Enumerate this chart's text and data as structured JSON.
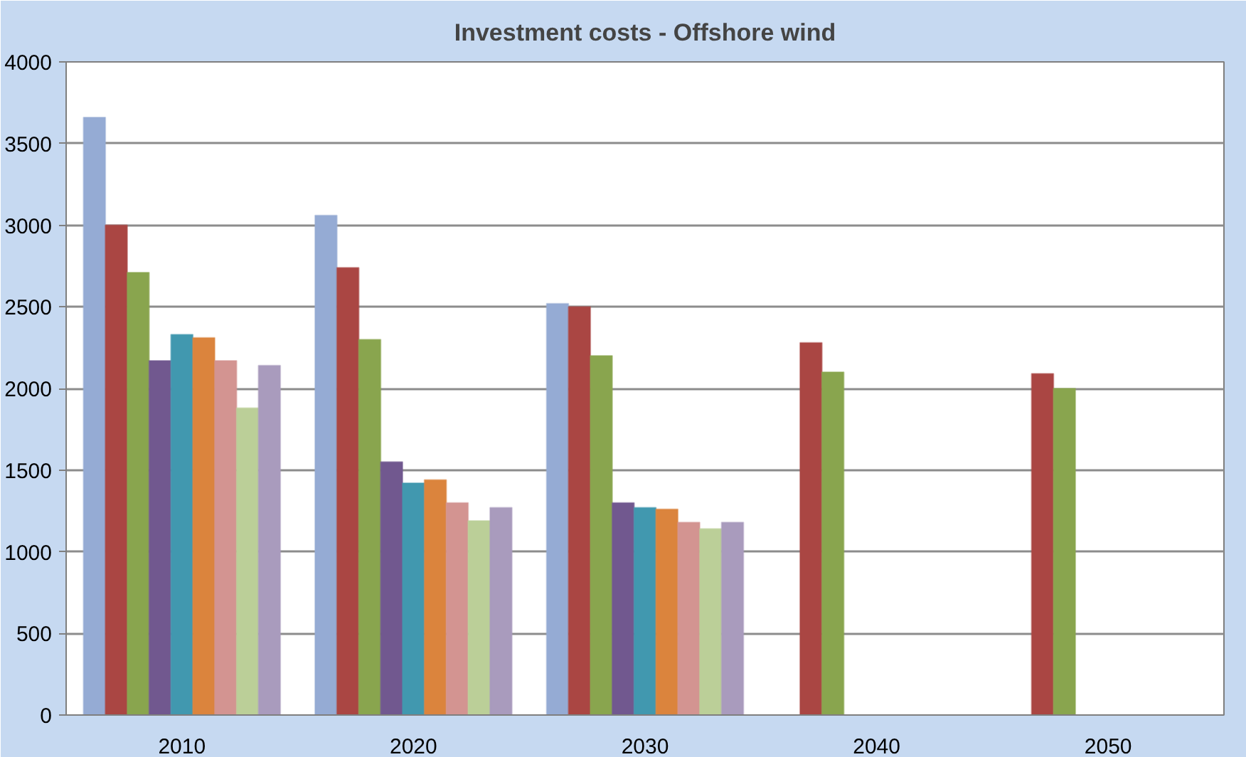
{
  "chart_data": {
    "type": "bar",
    "title": "Investment costs - Offshore wind",
    "categories": [
      "2010",
      "2020",
      "2030",
      "2040",
      "2050"
    ],
    "series": [
      {
        "color": "#95abd4",
        "values": [
          3660,
          3060,
          2520,
          null,
          null
        ]
      },
      {
        "color": "#aa4643",
        "values": [
          3000,
          2740,
          2500,
          2280,
          2090
        ]
      },
      {
        "color": "#89a54e",
        "values": [
          2710,
          2300,
          2200,
          2100,
          2000
        ]
      },
      {
        "color": "#71588f",
        "values": [
          2170,
          1550,
          1300,
          null,
          null
        ]
      },
      {
        "color": "#4198af",
        "values": [
          2330,
          1420,
          1270,
          null,
          null
        ]
      },
      {
        "color": "#db843d",
        "values": [
          2310,
          1440,
          1260,
          null,
          null
        ]
      },
      {
        "color": "#d39491",
        "values": [
          2170,
          1300,
          1180,
          null,
          null
        ]
      },
      {
        "color": "#bbcf98",
        "values": [
          1880,
          1190,
          1140,
          null,
          null
        ]
      },
      {
        "color": "#a99bbd",
        "values": [
          2140,
          1270,
          1180,
          null,
          null
        ]
      }
    ],
    "ylim": [
      0,
      4000
    ],
    "yticks": [
      0,
      500,
      1000,
      1500,
      2000,
      2500,
      3000,
      3500,
      4000
    ],
    "grid": "y"
  }
}
